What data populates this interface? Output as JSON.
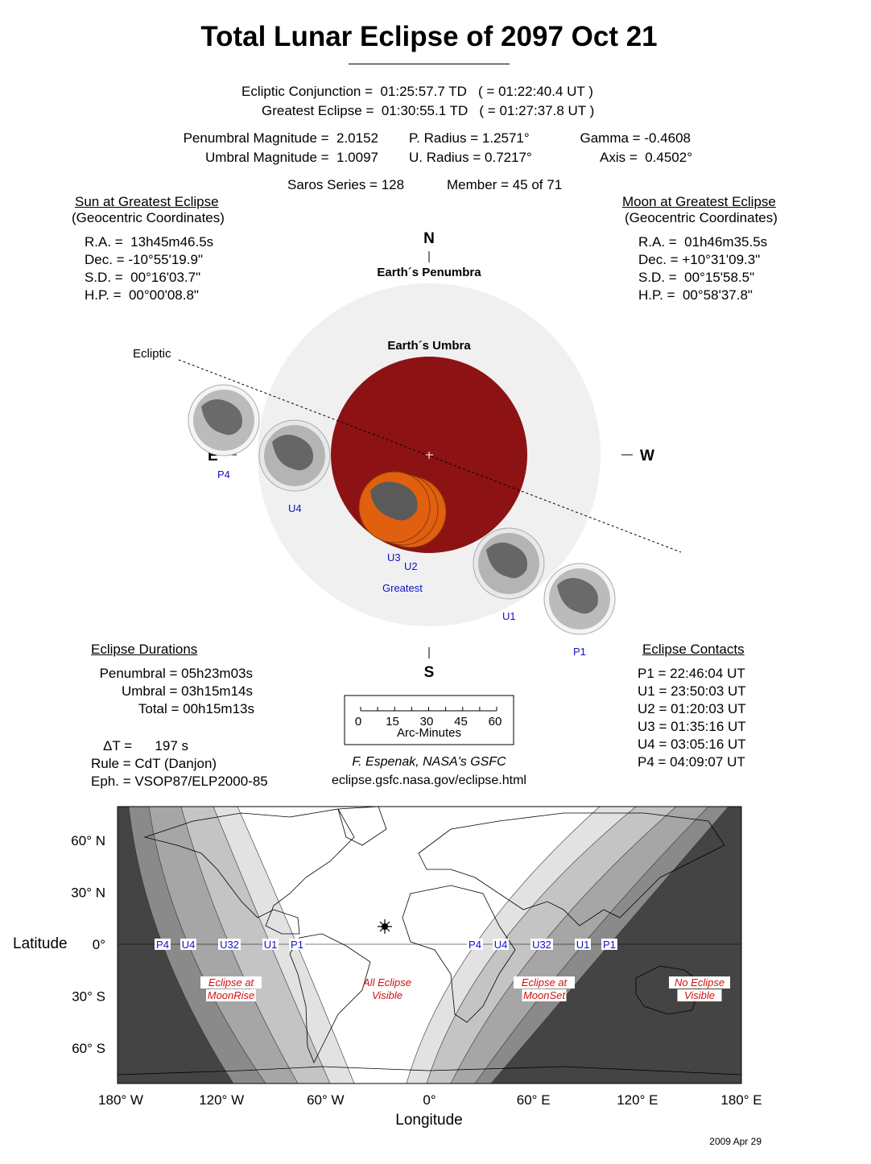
{
  "title": "Total Lunar Eclipse of  2097 Oct 21",
  "times": {
    "conjunction": "Ecliptic Conjunction =  01:25:57.7 TD   ( = 01:22:40.4 UT )",
    "greatest": "Greatest Eclipse =  01:30:55.1 TD   ( = 01:27:37.8 UT )"
  },
  "params": {
    "pen_mag": "Penumbral Magnitude =  2.0152",
    "umb_mag": "Umbral Magnitude =  1.0097",
    "p_radius": "P. Radius = 1.2571°",
    "u_radius": "U. Radius = 0.7217°",
    "gamma": "Gamma = -0.4608",
    "axis": "Axis =  0.4502°",
    "saros": "Saros Series = 128",
    "member": "Member = 45 of 71"
  },
  "sun": {
    "heading": "Sun at Greatest Eclipse",
    "sub": "(Geocentric Coordinates)",
    "lines": [
      "R.A. =  13h45m46.5s",
      "Dec. = -10°55'19.9\"",
      "S.D. =  00°16'03.7\"",
      "H.P. =  00°00'08.8\""
    ]
  },
  "moon": {
    "heading": "Moon at Greatest Eclipse",
    "sub": "(Geocentric Coordinates)",
    "lines": [
      "R.A. =  01h46m35.5s",
      "Dec. = +10°31'09.3\"",
      "S.D. =  00°15'58.5\"",
      "H.P. =  00°58'37.8\""
    ]
  },
  "diagram": {
    "north": "N",
    "south": "S",
    "east": "E",
    "west": "W",
    "penumbra_label": "Earth´s Penumbra",
    "umbra_label": "Earth´s Umbra",
    "ecliptic_label": "Ecliptic",
    "contacts": {
      "p4": "P4",
      "u4": "U4",
      "u3": "U3",
      "u2": "U2",
      "greatest": "Greatest",
      "u1": "U1",
      "p1": "P1"
    },
    "colors": {
      "penumbra": "#f0f0f0",
      "umbra": "#8d1214",
      "moon_eclipsed": "#e06010",
      "moon": "#d8d8d8"
    }
  },
  "durations": {
    "heading": "Eclipse Durations",
    "lines": [
      "Penumbral = 05h23m03s",
      "Umbral = 03h15m14s",
      "Total = 00h15m13s"
    ]
  },
  "misc": {
    "delta_t": "ΔT =      197 s",
    "rule": "Rule = CdT (Danjon)",
    "eph": "Eph. = VSOP87/ELP2000-85"
  },
  "scale": {
    "ticks": [
      "0",
      "15",
      "30",
      "45",
      "60"
    ],
    "unit": "Arc-Minutes"
  },
  "credit": {
    "author": "F. Espenak, NASA's GSFC",
    "url": "eclipse.gsfc.nasa.gov/eclipse.html"
  },
  "contacts": {
    "heading": "Eclipse Contacts",
    "lines": [
      "P1 = 22:46:04 UT",
      "U1 = 23:50:03 UT",
      "U2 = 01:20:03 UT",
      "U3 = 01:35:16 UT",
      "U4 = 03:05:16 UT",
      "P4 = 04:09:07 UT"
    ]
  },
  "map": {
    "lat_ticks": [
      "60° N",
      "30° N",
      "0°",
      "30° S",
      "60° S"
    ],
    "lon_ticks": [
      "180° W",
      "120° W",
      "60° W",
      "0°",
      "60° E",
      "120° E",
      "180° E"
    ],
    "xlabel": "Longitude",
    "ylabel": "Latitude",
    "west_contacts": [
      "P4",
      "U4",
      "U32",
      "U1",
      "P1"
    ],
    "east_contacts": [
      "P4",
      "U4",
      "U32",
      "U1",
      "P1"
    ],
    "regions": [
      "Eclipse at\nMoonRise",
      "All Eclipse\nVisible",
      "Eclipse at\nMoonSet",
      "No Eclipse\nVisible"
    ]
  },
  "date": "2009 Apr 29"
}
